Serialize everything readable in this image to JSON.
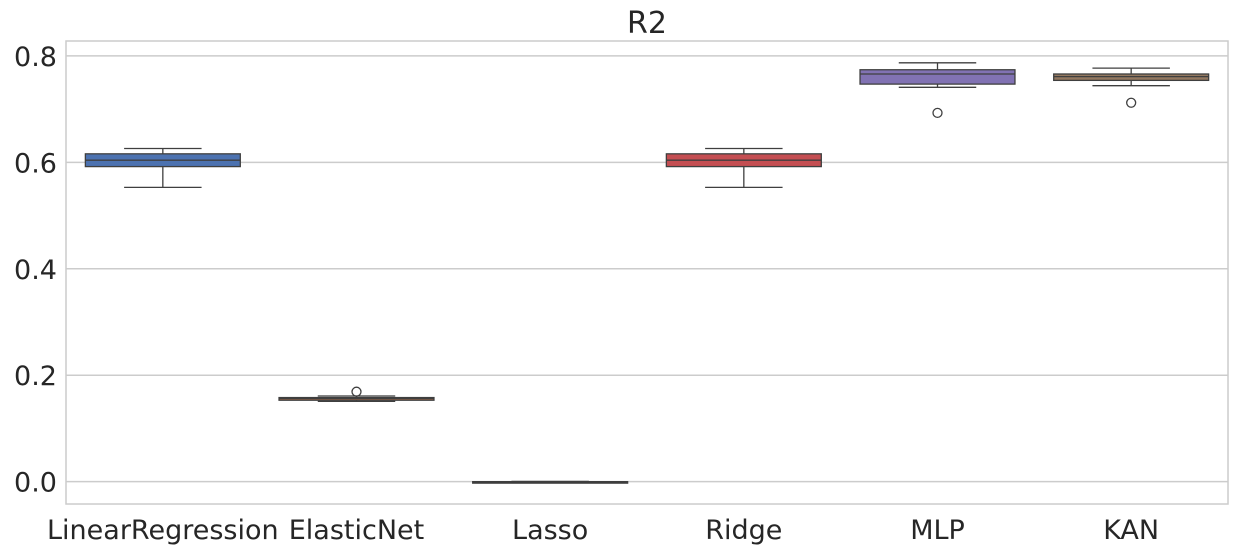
{
  "chart_data": {
    "type": "box",
    "title": "R2",
    "xlabel": "",
    "ylabel": "",
    "ylim": [
      -0.042,
      0.828
    ],
    "yticks": [
      0.0,
      0.2,
      0.4,
      0.6,
      0.8
    ],
    "ytick_labels": [
      "0.0",
      "0.2",
      "0.4",
      "0.6",
      "0.8"
    ],
    "grid": "horizontal",
    "categories": [
      "LinearRegression",
      "ElasticNet",
      "Lasso",
      "Ridge",
      "MLP",
      "KAN"
    ],
    "series": [
      {
        "category": "LinearRegression",
        "color": "#4c72b0",
        "whisker_low": 0.553,
        "q1": 0.592,
        "median": 0.604,
        "q3": 0.616,
        "whisker_high": 0.626,
        "outliers": []
      },
      {
        "category": "ElasticNet",
        "color": "#dd8452",
        "whisker_low": 0.151,
        "q1": 0.153,
        "median": 0.156,
        "q3": 0.158,
        "whisker_high": 0.161,
        "outliers": [
          0.169
        ]
      },
      {
        "category": "Lasso",
        "color": "#55a868",
        "whisker_low": -0.002,
        "q1": -0.001,
        "median": -0.0005,
        "q3": 0.0,
        "whisker_high": 0.0005,
        "outliers": []
      },
      {
        "category": "Ridge",
        "color": "#c44e52",
        "whisker_low": 0.553,
        "q1": 0.592,
        "median": 0.604,
        "q3": 0.616,
        "whisker_high": 0.626,
        "outliers": []
      },
      {
        "category": "MLP",
        "color": "#8172b3",
        "whisker_low": 0.741,
        "q1": 0.747,
        "median": 0.766,
        "q3": 0.774,
        "whisker_high": 0.787,
        "outliers": [
          0.693
        ]
      },
      {
        "category": "KAN",
        "color": "#937860",
        "whisker_low": 0.744,
        "q1": 0.754,
        "median": 0.761,
        "q3": 0.766,
        "whisker_high": 0.777,
        "outliers": [
          0.712
        ]
      }
    ]
  }
}
